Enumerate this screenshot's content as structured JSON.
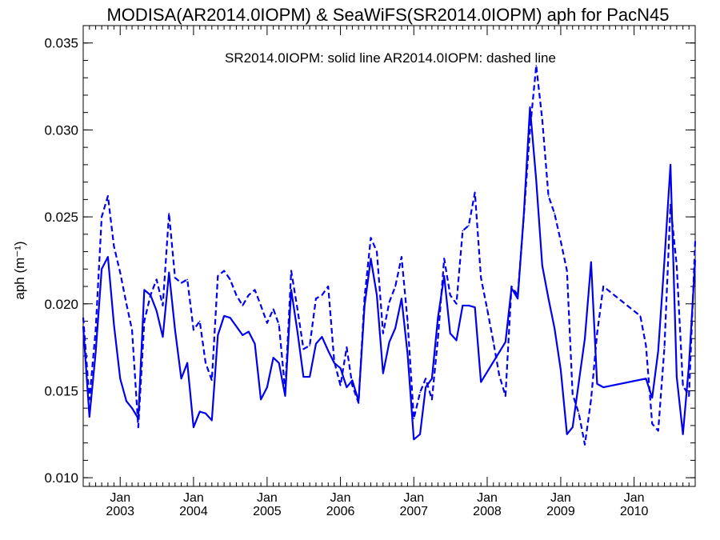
{
  "chart_data": {
    "type": "line",
    "title": "MODISA(AR2014.0IOPM) & SeaWiFS(SR2014.0IOPM)  aph for PacN45",
    "annotation": "SR2014.0IOPM: solid line   AR2014.0IOPM: dashed line",
    "ylabel": "aph (m⁻¹)",
    "xlabel": "",
    "xlim": [
      "2002-07-01",
      "2010-11-01"
    ],
    "ylim": [
      0.0095,
      0.036
    ],
    "y_ticks": [
      "0.010",
      "0.015",
      "0.020",
      "0.025",
      "0.030",
      "0.035"
    ],
    "x_ticks": [
      {
        "date": "2003-01-01",
        "month": "Jan",
        "year": "2003"
      },
      {
        "date": "2004-01-01",
        "month": "Jan",
        "year": "2004"
      },
      {
        "date": "2005-01-01",
        "month": "Jan",
        "year": "2005"
      },
      {
        "date": "2006-01-01",
        "month": "Jan",
        "year": "2006"
      },
      {
        "date": "2007-01-01",
        "month": "Jan",
        "year": "2007"
      },
      {
        "date": "2008-01-01",
        "month": "Jan",
        "year": "2008"
      },
      {
        "date": "2009-01-01",
        "month": "Jan",
        "year": "2009"
      },
      {
        "date": "2010-01-01",
        "month": "Jan",
        "year": "2010"
      }
    ],
    "grid": false,
    "line_color": "#0000ee",
    "series": [
      {
        "name": "SR2014.0IOPM",
        "style": "solid",
        "x": [
          "2002-07-01",
          "2002-08-01",
          "2002-09-01",
          "2002-10-01",
          "2002-11-01",
          "2002-12-01",
          "2003-01-01",
          "2003-02-01",
          "2003-03-01",
          "2003-04-01",
          "2003-05-01",
          "2003-06-01",
          "2003-07-01",
          "2003-08-01",
          "2003-09-01",
          "2003-10-01",
          "2003-11-01",
          "2003-12-01",
          "2004-01-01",
          "2004-02-01",
          "2004-03-01",
          "2004-04-01",
          "2004-05-01",
          "2004-06-01",
          "2004-07-01",
          "2004-08-01",
          "2004-09-01",
          "2004-10-01",
          "2004-11-01",
          "2004-12-01",
          "2005-01-01",
          "2005-02-01",
          "2005-03-01",
          "2005-04-01",
          "2005-05-01",
          "2005-06-01",
          "2005-07-01",
          "2005-08-01",
          "2005-09-01",
          "2005-10-01",
          "2005-11-01",
          "2005-12-01",
          "2006-01-01",
          "2006-02-01",
          "2006-03-01",
          "2006-04-01",
          "2006-05-01",
          "2006-06-01",
          "2006-07-01",
          "2006-08-01",
          "2006-09-01",
          "2006-10-01",
          "2006-11-01",
          "2006-12-01",
          "2007-01-01",
          "2007-02-01",
          "2007-03-01",
          "2007-04-01",
          "2007-05-01",
          "2007-06-01",
          "2007-07-01",
          "2007-08-01",
          "2007-09-01",
          "2007-10-01",
          "2007-11-01",
          "2007-12-01",
          "2008-04-01",
          "2008-05-01",
          "2008-06-01",
          "2008-07-01",
          "2008-08-01",
          "2008-09-01",
          "2008-10-01",
          "2008-11-01",
          "2008-12-01",
          "2009-01-01",
          "2009-02-01",
          "2009-03-01",
          "2009-04-01",
          "2009-05-01",
          "2009-06-01",
          "2009-07-01",
          "2009-08-01",
          "2010-03-01",
          "2010-04-01",
          "2010-05-01",
          "2010-06-01",
          "2010-07-01",
          "2010-08-01",
          "2010-09-01",
          "2010-10-01",
          "2010-11-01"
        ],
        "y": [
          0.0187,
          0.0135,
          0.0172,
          0.022,
          0.0227,
          0.0188,
          0.0157,
          0.0144,
          0.014,
          0.0134,
          0.0208,
          0.0205,
          0.0196,
          0.0181,
          0.0218,
          0.0185,
          0.0157,
          0.0166,
          0.0129,
          0.0138,
          0.0137,
          0.0133,
          0.0182,
          0.0193,
          0.0192,
          0.0187,
          0.0182,
          0.0184,
          0.0177,
          0.0145,
          0.0152,
          0.0169,
          0.0166,
          0.0147,
          0.0208,
          0.0184,
          0.0158,
          0.0158,
          0.0177,
          0.0181,
          0.0173,
          0.0166,
          0.0163,
          0.0152,
          0.0156,
          0.0144,
          0.0199,
          0.0226,
          0.0205,
          0.016,
          0.0178,
          0.0186,
          0.0203,
          0.0171,
          0.0122,
          0.0125,
          0.0152,
          0.0157,
          0.0192,
          0.0216,
          0.0183,
          0.0179,
          0.0199,
          0.0199,
          0.0198,
          0.0155,
          0.0178,
          0.0209,
          0.0203,
          0.0251,
          0.0313,
          0.0271,
          0.0222,
          0.0203,
          0.0186,
          0.0162,
          0.0125,
          0.0129,
          0.0155,
          0.018,
          0.0224,
          0.0154,
          0.0152,
          0.0157,
          0.0146,
          0.0173,
          0.0225,
          0.028,
          0.0158,
          0.0125,
          0.0165,
          0.0225
        ]
      },
      {
        "name": "AR2014.0IOPM",
        "style": "dashed",
        "x": [
          "2002-07-01",
          "2002-08-01",
          "2002-09-01",
          "2002-10-01",
          "2002-11-01",
          "2002-12-01",
          "2003-01-01",
          "2003-02-01",
          "2003-03-01",
          "2003-04-01",
          "2003-05-01",
          "2003-06-01",
          "2003-07-01",
          "2003-08-01",
          "2003-09-01",
          "2003-10-01",
          "2003-11-01",
          "2003-12-01",
          "2004-01-01",
          "2004-02-01",
          "2004-03-01",
          "2004-04-01",
          "2004-05-01",
          "2004-06-01",
          "2004-07-01",
          "2004-08-01",
          "2004-09-01",
          "2004-10-01",
          "2004-11-01",
          "2004-12-01",
          "2005-01-01",
          "2005-02-01",
          "2005-03-01",
          "2005-04-01",
          "2005-05-01",
          "2005-06-01",
          "2005-07-01",
          "2005-08-01",
          "2005-09-01",
          "2005-10-01",
          "2005-11-01",
          "2005-12-01",
          "2006-01-01",
          "2006-02-01",
          "2006-03-01",
          "2006-04-01",
          "2006-05-01",
          "2006-06-01",
          "2006-07-01",
          "2006-08-01",
          "2006-09-01",
          "2006-10-01",
          "2006-11-01",
          "2006-12-01",
          "2007-01-01",
          "2007-02-01",
          "2007-03-01",
          "2007-04-01",
          "2007-05-01",
          "2007-06-01",
          "2007-07-01",
          "2007-08-01",
          "2007-09-01",
          "2007-10-01",
          "2007-11-01",
          "2007-12-01",
          "2008-01-01",
          "2008-02-01",
          "2008-03-01",
          "2008-04-01",
          "2008-05-01",
          "2008-06-01",
          "2008-07-01",
          "2008-08-01",
          "2008-09-01",
          "2008-10-01",
          "2008-11-01",
          "2008-12-01",
          "2009-01-01",
          "2009-02-01",
          "2009-03-01",
          "2009-04-01",
          "2009-05-01",
          "2009-06-01",
          "2009-07-01",
          "2009-08-01",
          "2010-02-01",
          "2010-03-01",
          "2010-04-01",
          "2010-05-01",
          "2010-06-01",
          "2010-07-01",
          "2010-08-01",
          "2010-09-01",
          "2010-10-01",
          "2010-11-01"
        ],
        "y": [
          0.0192,
          0.0145,
          0.0185,
          0.025,
          0.0262,
          0.0233,
          0.0218,
          0.02,
          0.0185,
          0.0129,
          0.019,
          0.0205,
          0.0214,
          0.0199,
          0.0252,
          0.0215,
          0.0212,
          0.0214,
          0.0185,
          0.019,
          0.0166,
          0.0156,
          0.0216,
          0.0219,
          0.0214,
          0.0205,
          0.0199,
          0.0205,
          0.0208,
          0.0199,
          0.0189,
          0.0197,
          0.0188,
          0.015,
          0.0219,
          0.0197,
          0.0174,
          0.0176,
          0.0203,
          0.0205,
          0.021,
          0.0167,
          0.0153,
          0.0175,
          0.0153,
          0.0143,
          0.0204,
          0.0238,
          0.023,
          0.0183,
          0.0201,
          0.021,
          0.0227,
          0.019,
          0.0134,
          0.0149,
          0.0157,
          0.0145,
          0.018,
          0.0226,
          0.0205,
          0.02,
          0.0242,
          0.0245,
          0.0264,
          0.0215,
          0.0197,
          0.0178,
          0.0159,
          0.0147,
          0.021,
          0.0205,
          0.025,
          0.03,
          0.0337,
          0.0306,
          0.0262,
          0.0252,
          0.0236,
          0.0219,
          0.0148,
          0.0137,
          0.0119,
          0.0145,
          0.0183,
          0.021,
          0.0193,
          0.0176,
          0.0131,
          0.0127,
          0.0175,
          0.0257,
          0.0222,
          0.0153,
          0.0147,
          0.0236
        ]
      }
    ]
  }
}
